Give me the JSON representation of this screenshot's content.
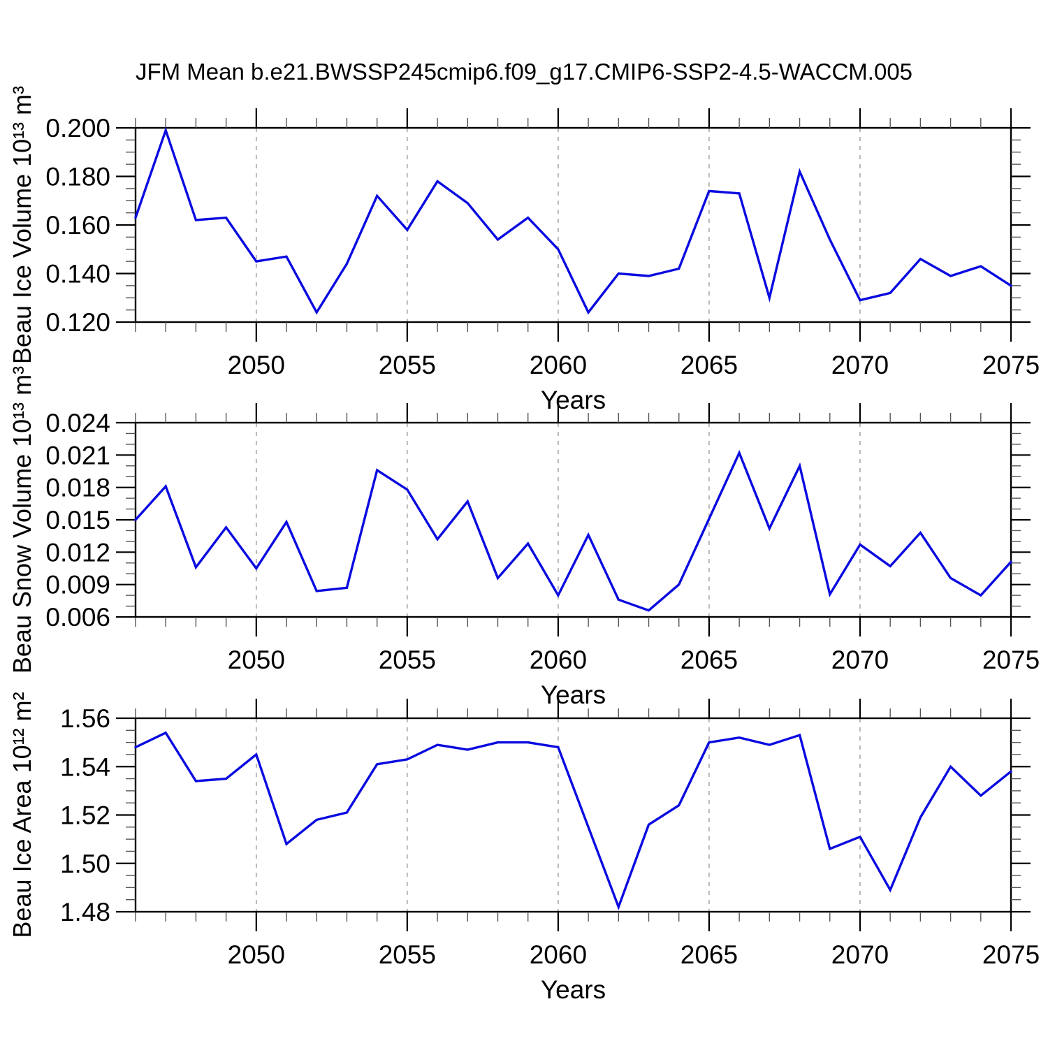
{
  "title": "JFM Mean b.e21.BWSSP245cmip6.f09_g17.CMIP6-SSP2-4.5-WACCM.005",
  "styles": {
    "line_color": "#0a0ae0",
    "grid_color": "#a8a8a8",
    "axis_color": "#000000",
    "minor_tick_color": "#555555",
    "background": "#ffffff"
  },
  "chart_data": [
    {
      "id": "ice-volume",
      "type": "line",
      "title": "",
      "xlabel": "Years",
      "ylabel": "Beau Ice Volume 10¹³ m³",
      "xlim": [
        2046,
        2075
      ],
      "ylim": [
        0.12,
        0.2
      ],
      "xticks": [
        2050,
        2055,
        2060,
        2065,
        2070,
        2075
      ],
      "x_tick_labels": [
        "2050",
        "2055",
        "2060",
        "2065",
        "2070",
        "2075"
      ],
      "yticks": [
        0.12,
        0.14,
        0.16,
        0.18,
        0.2
      ],
      "ytick_labels": [
        "0.120",
        "0.140",
        "0.160",
        "0.180",
        "0.200"
      ],
      "y_minor_step": 0.005,
      "x_minor_step": 1,
      "grid": "vertical-dashed",
      "legend": "none",
      "x": [
        2046,
        2047,
        2048,
        2049,
        2050,
        2051,
        2052,
        2053,
        2054,
        2055,
        2056,
        2057,
        2058,
        2059,
        2060,
        2061,
        2062,
        2063,
        2064,
        2065,
        2066,
        2067,
        2068,
        2069,
        2070,
        2071,
        2072,
        2073,
        2074,
        2075
      ],
      "y": [
        0.163,
        0.199,
        0.162,
        0.163,
        0.145,
        0.147,
        0.124,
        0.144,
        0.172,
        0.158,
        0.178,
        0.169,
        0.154,
        0.163,
        0.15,
        0.124,
        0.14,
        0.139,
        0.142,
        0.174,
        0.173,
        0.13,
        0.182,
        0.154,
        0.129,
        0.132,
        0.146,
        0.139,
        0.143,
        0.135
      ]
    },
    {
      "id": "snow-volume",
      "type": "line",
      "title": "",
      "xlabel": "Years",
      "ylabel": "Beau Snow Volume 10¹³ m³",
      "xlim": [
        2046,
        2075
      ],
      "ylim": [
        0.006,
        0.024
      ],
      "xticks": [
        2050,
        2055,
        2060,
        2065,
        2070,
        2075
      ],
      "x_tick_labels": [
        "2050",
        "2055",
        "2060",
        "2065",
        "2070",
        "2075"
      ],
      "yticks": [
        0.006,
        0.009,
        0.012,
        0.015,
        0.018,
        0.021,
        0.024
      ],
      "ytick_labels": [
        "0.006",
        "0.009",
        "0.012",
        "0.015",
        "0.018",
        "0.021",
        "0.024"
      ],
      "y_minor_step": 0.001,
      "x_minor_step": 1,
      "grid": "vertical-dashed",
      "legend": "none",
      "x": [
        2046,
        2047,
        2048,
        2049,
        2050,
        2051,
        2052,
        2053,
        2054,
        2055,
        2056,
        2057,
        2058,
        2059,
        2060,
        2061,
        2062,
        2063,
        2064,
        2065,
        2066,
        2067,
        2068,
        2069,
        2070,
        2071,
        2072,
        2073,
        2074,
        2075
      ],
      "y": [
        0.015,
        0.0181,
        0.0106,
        0.0143,
        0.0105,
        0.0148,
        0.0084,
        0.0087,
        0.0196,
        0.0178,
        0.0132,
        0.0167,
        0.0096,
        0.0128,
        0.008,
        0.0136,
        0.0076,
        0.0066,
        0.009,
        0.0151,
        0.0212,
        0.0142,
        0.02,
        0.0081,
        0.0127,
        0.0107,
        0.0138,
        0.0096,
        0.008,
        0.0111
      ]
    },
    {
      "id": "ice-area",
      "type": "line",
      "title": "",
      "xlabel": "Years",
      "ylabel": "Beau Ice Area 10¹² m²",
      "xlim": [
        2046,
        2075
      ],
      "ylim": [
        1.48,
        1.56
      ],
      "xticks": [
        2050,
        2055,
        2060,
        2065,
        2070,
        2075
      ],
      "x_tick_labels": [
        "2050",
        "2055",
        "2060",
        "2065",
        "2070",
        "2075"
      ],
      "yticks": [
        1.48,
        1.5,
        1.52,
        1.54,
        1.56
      ],
      "ytick_labels": [
        "1.48",
        "1.50",
        "1.52",
        "1.54",
        "1.56"
      ],
      "y_minor_step": 0.005,
      "x_minor_step": 1,
      "grid": "vertical-dashed",
      "legend": "none",
      "x": [
        2046,
        2047,
        2048,
        2049,
        2050,
        2051,
        2052,
        2053,
        2054,
        2055,
        2056,
        2057,
        2058,
        2059,
        2060,
        2061,
        2062,
        2063,
        2064,
        2065,
        2066,
        2067,
        2068,
        2069,
        2070,
        2071,
        2072,
        2073,
        2074,
        2075
      ],
      "y": [
        1.548,
        1.554,
        1.534,
        1.535,
        1.545,
        1.508,
        1.518,
        1.521,
        1.541,
        1.543,
        1.549,
        1.547,
        1.55,
        1.55,
        1.548,
        1.515,
        1.482,
        1.516,
        1.524,
        1.55,
        1.552,
        1.549,
        1.553,
        1.506,
        1.511,
        1.489,
        1.519,
        1.54,
        1.528,
        1.538
      ]
    }
  ]
}
